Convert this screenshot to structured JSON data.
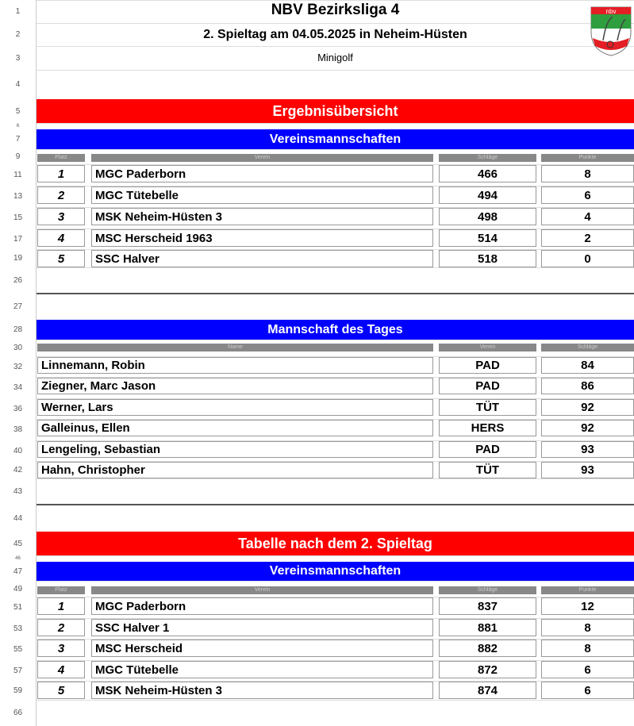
{
  "header": {
    "title": "NBV Bezirksliga 4",
    "subtitle": "2. Spieltag am 04.05.2025 in Neheim-Hüsten",
    "sport": "Minigolf",
    "logo_text": "nbv"
  },
  "row_numbers": [
    "1",
    "2",
    "3",
    "4",
    "5",
    "6",
    "7",
    "9",
    "11",
    "13",
    "15",
    "17",
    "19",
    "26",
    "27",
    "28",
    "30",
    "32",
    "34",
    "36",
    "38",
    "40",
    "42",
    "43",
    "44",
    "45",
    "46",
    "47",
    "49",
    "51",
    "53",
    "55",
    "57",
    "59",
    "66"
  ],
  "section1": {
    "title": "Ergebnisübersicht",
    "subtitle": "Vereinsmannschaften",
    "columns": [
      "Platz",
      "Verein",
      "Schläge",
      "Punkte"
    ],
    "rows": [
      [
        "1",
        "MGC Paderborn",
        "466",
        "8"
      ],
      [
        "2",
        "MGC Tütebelle",
        "494",
        "6"
      ],
      [
        "3",
        "MSK Neheim-Hüsten 3",
        "498",
        "4"
      ],
      [
        "4",
        "MSC Herscheid 1963",
        "514",
        "2"
      ],
      [
        "5",
        "SSC Halver",
        "518",
        "0"
      ]
    ]
  },
  "section2": {
    "title": "Mannschaft des Tages",
    "columns": [
      "Name",
      "Verein",
      "Schläge"
    ],
    "rows": [
      [
        "Linnemann, Robin",
        "PAD",
        "84"
      ],
      [
        "Ziegner, Marc Jason",
        "PAD",
        "86"
      ],
      [
        "Werner, Lars",
        "TÜT",
        "92"
      ],
      [
        "Galleinus, Ellen",
        "HERS",
        "92"
      ],
      [
        "Lengeling, Sebastian",
        "PAD",
        "93"
      ],
      [
        "Hahn, Christopher",
        "TÜT",
        "93"
      ]
    ]
  },
  "section3": {
    "title": "Tabelle nach dem 2. Spieltag",
    "subtitle": "Vereinsmannschaften",
    "columns": [
      "Platz",
      "Verein",
      "Schläge",
      "Punkte"
    ],
    "rows": [
      [
        "1",
        "MGC Paderborn",
        "837",
        "12"
      ],
      [
        "2",
        "SSC Halver 1",
        "881",
        "8"
      ],
      [
        "3",
        "MSC Herscheid",
        "882",
        "8"
      ],
      [
        "4",
        "MGC Tütebelle",
        "872",
        "6"
      ],
      [
        "5",
        "MSK Neheim-Hüsten 3",
        "874",
        "6"
      ]
    ]
  },
  "colors": {
    "red": "#ff0000",
    "blue": "#0000ff",
    "header_gray": "#888888"
  }
}
